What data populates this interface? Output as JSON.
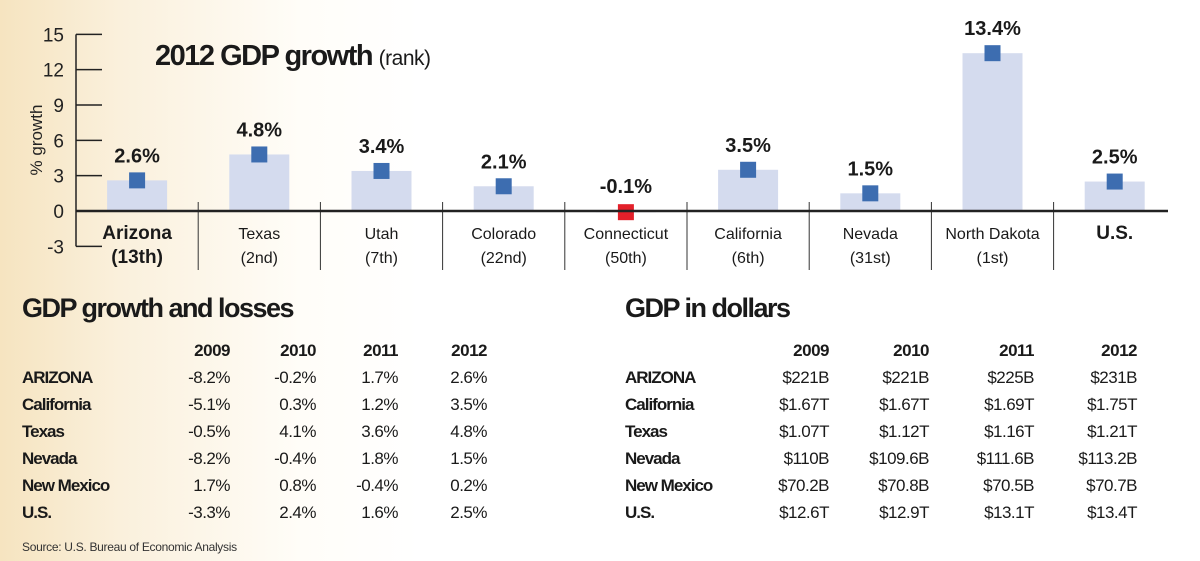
{
  "chart_data": {
    "type": "bar",
    "title": "2012 GDP growth",
    "title_suffix": "(rank)",
    "ylabel": "% growth",
    "ylim": [
      -3,
      15
    ],
    "yticks": [
      15,
      12,
      9,
      6,
      3,
      0,
      -3
    ],
    "grid": false,
    "categories": [
      "Arizona",
      "Texas",
      "Utah",
      "Colorado",
      "Connecticut",
      "California",
      "Nevada",
      "North Dakota",
      "U.S."
    ],
    "ranks": [
      "(13th)",
      "(2nd)",
      "(7th)",
      "(22nd)",
      "(50th)",
      "(6th)",
      "(31st)",
      "(1st)",
      ""
    ],
    "values": [
      2.6,
      4.8,
      3.4,
      2.1,
      -0.1,
      3.5,
      1.5,
      13.4,
      2.5
    ],
    "data_labels": [
      "2.6%",
      "4.8%",
      "3.4%",
      "2.1%",
      "-0.1%",
      "3.5%",
      "1.5%",
      "13.4%",
      "2.5%"
    ],
    "bold_categories": [
      "Arizona",
      "U.S."
    ],
    "colors": {
      "bar": "#d4dbee",
      "marker": "#3d6db0",
      "negative_marker": "#e3202a",
      "axis": "#222222"
    }
  },
  "growth_table": {
    "title": "GDP growth and losses",
    "years": [
      "2009",
      "2010",
      "2011",
      "2012"
    ],
    "rows": [
      {
        "label": "ARIZONA",
        "values": [
          "-8.2%",
          "-0.2%",
          "1.7%",
          "2.6%"
        ]
      },
      {
        "label": "California",
        "values": [
          "-5.1%",
          "0.3%",
          "1.2%",
          "3.5%"
        ]
      },
      {
        "label": "Texas",
        "values": [
          "-0.5%",
          "4.1%",
          "3.6%",
          "4.8%"
        ]
      },
      {
        "label": "Nevada",
        "values": [
          "-8.2%",
          "-0.4%",
          "1.8%",
          "1.5%"
        ]
      },
      {
        "label": "New Mexico",
        "values": [
          "1.7%",
          "0.8%",
          "-0.4%",
          "0.2%"
        ]
      },
      {
        "label": "U.S.",
        "values": [
          "-3.3%",
          "2.4%",
          "1.6%",
          "2.5%"
        ]
      }
    ]
  },
  "dollars_table": {
    "title": "GDP in dollars",
    "years": [
      "2009",
      "2010",
      "2011",
      "2012"
    ],
    "rows": [
      {
        "label": "ARIZONA",
        "values": [
          "$221B",
          "$221B",
          "$225B",
          "$231B"
        ]
      },
      {
        "label": "California",
        "values": [
          "$1.67T",
          "$1.67T",
          "$1.69T",
          "$1.75T"
        ]
      },
      {
        "label": "Texas",
        "values": [
          "$1.07T",
          "$1.12T",
          "$1.16T",
          "$1.21T"
        ]
      },
      {
        "label": "Nevada",
        "values": [
          "$110B",
          "$109.6B",
          "$111.6B",
          "$113.2B"
        ]
      },
      {
        "label": "New Mexico",
        "values": [
          "$70.2B",
          "$70.8B",
          "$70.5B",
          "$70.7B"
        ]
      },
      {
        "label": "U.S.",
        "values": [
          "$12.6T",
          "$12.9T",
          "$13.1T",
          "$13.4T"
        ]
      }
    ]
  },
  "source": "Source: U.S. Bureau of Economic Analysis"
}
